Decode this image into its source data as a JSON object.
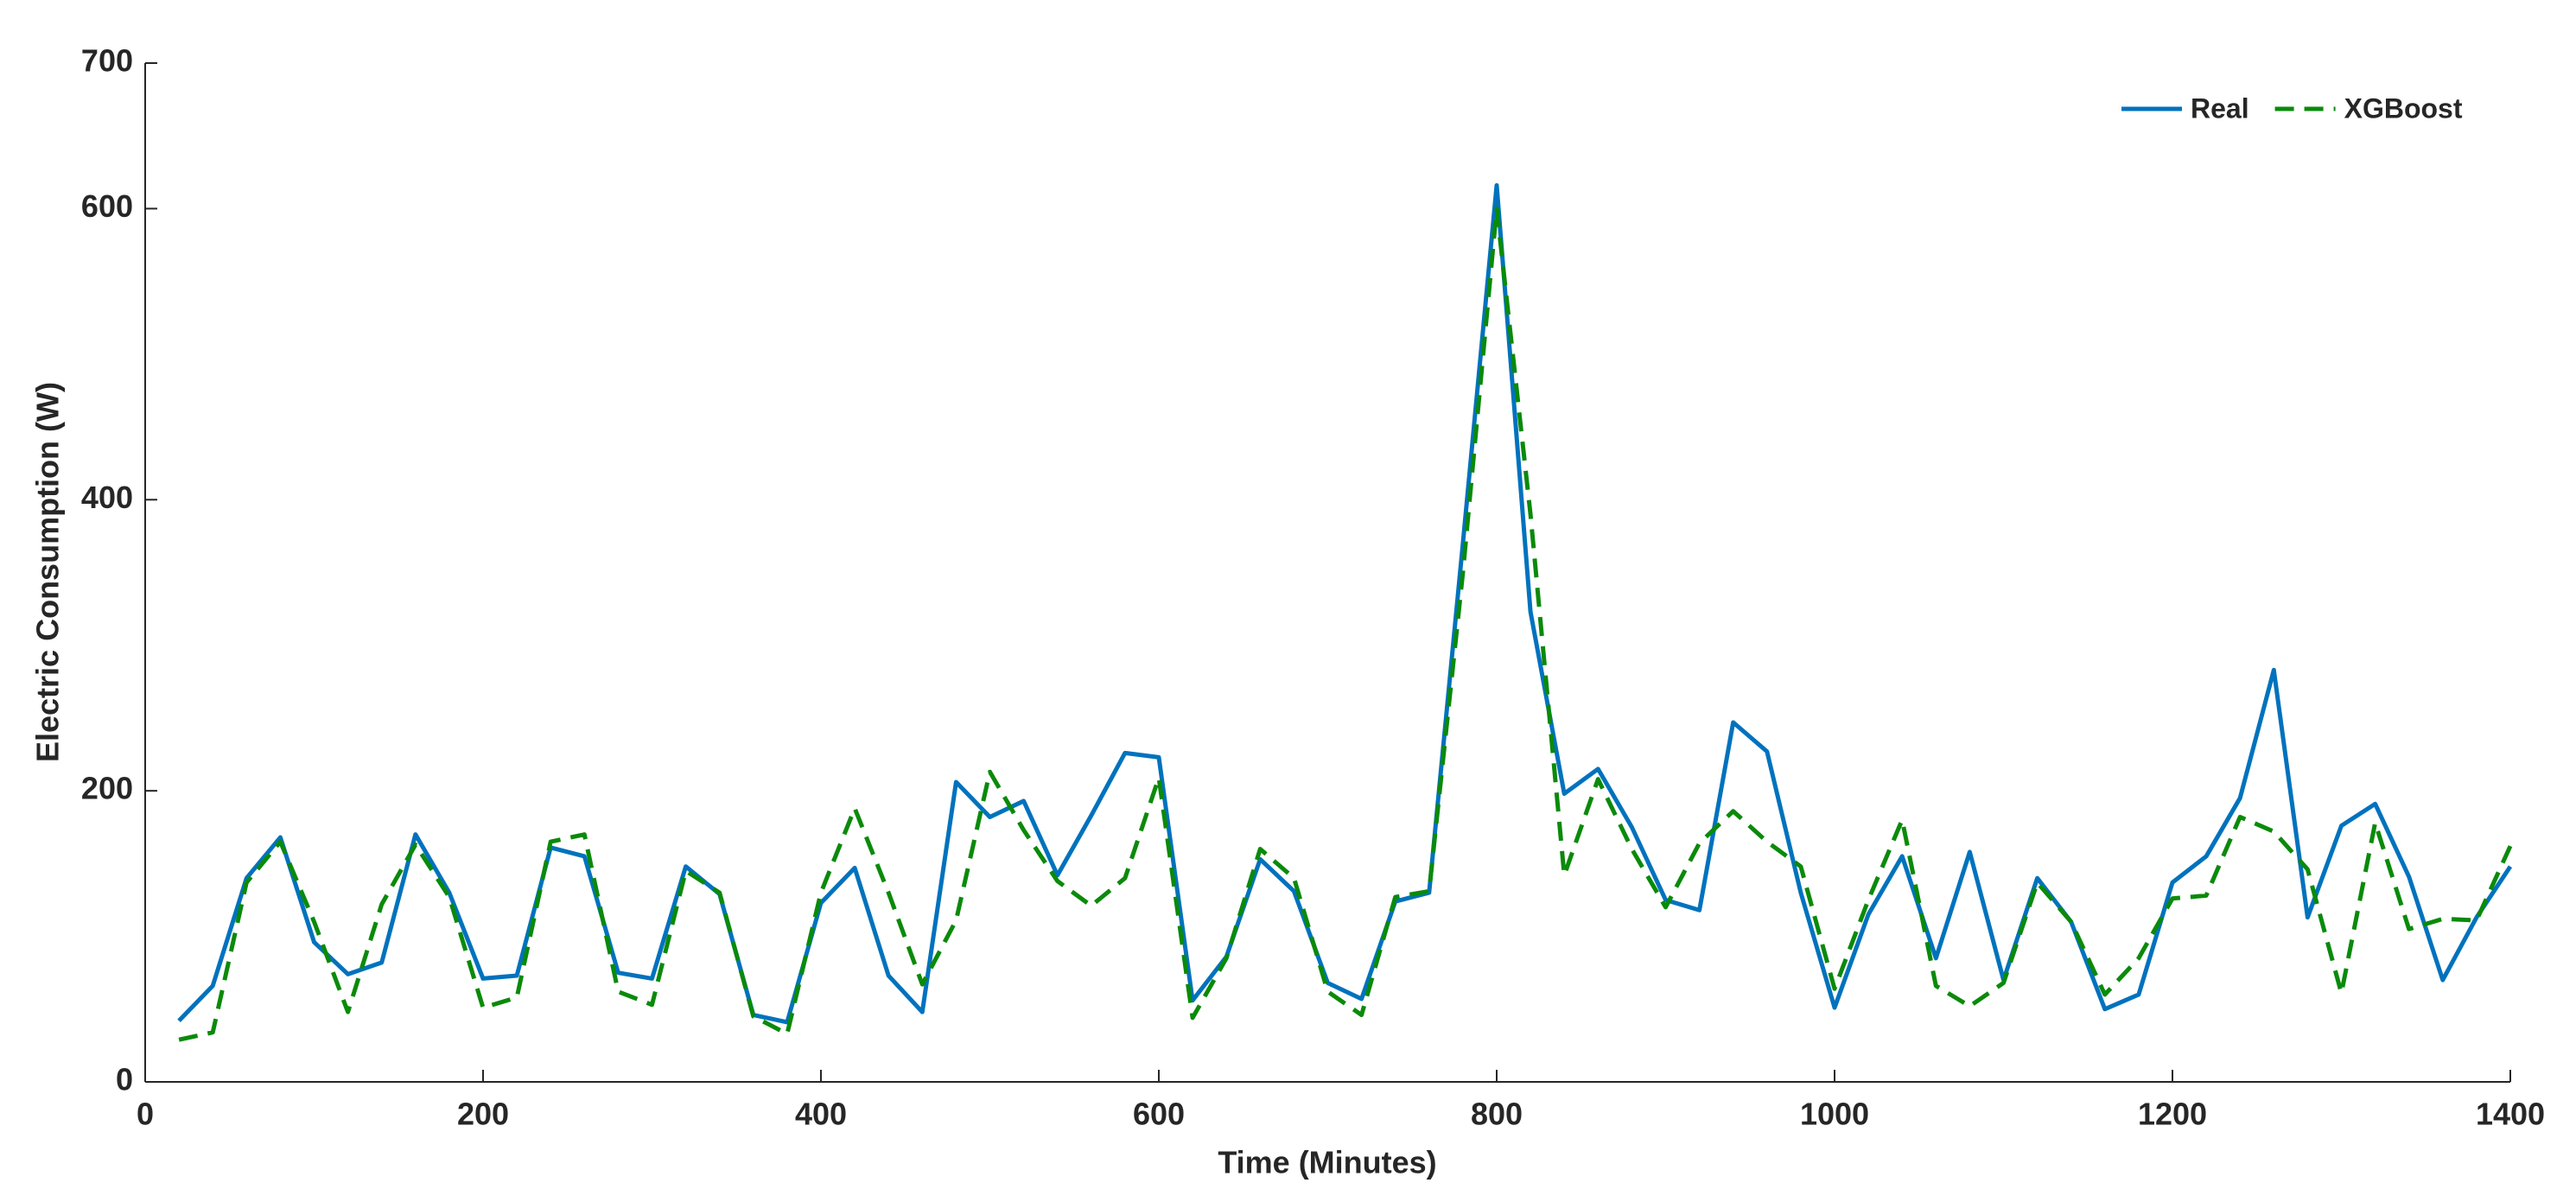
{
  "chart_data": {
    "type": "line",
    "xlabel": "Time (Minutes)",
    "ylabel": "Electric Consumption (W)",
    "x": [
      20,
      40,
      60,
      80,
      100,
      120,
      140,
      160,
      180,
      200,
      220,
      240,
      260,
      280,
      300,
      320,
      340,
      360,
      380,
      400,
      420,
      440,
      460,
      480,
      500,
      520,
      540,
      560,
      580,
      600,
      620,
      640,
      660,
      680,
      700,
      720,
      740,
      760,
      780,
      800,
      820,
      840,
      860,
      880,
      900,
      920,
      940,
      960,
      980,
      1000,
      1020,
      1040,
      1060,
      1080,
      1100,
      1120,
      1140,
      1160,
      1180,
      1200,
      1220,
      1240,
      1260,
      1280,
      1300,
      1320,
      1340,
      1360,
      1380,
      1400
    ],
    "series": [
      {
        "name": "Real",
        "color": "#0072bd",
        "dash": false,
        "values": [
          42,
          66,
          140,
          168,
          96,
          74,
          82,
          170,
          130,
          71,
          73,
          161,
          155,
          75,
          71,
          148,
          129,
          46,
          41,
          123,
          147,
          73,
          48,
          206,
          182,
          193,
          142,
          183,
          226,
          223,
          56,
          86,
          153,
          131,
          68,
          57,
          124,
          130,
          370,
          616,
          323,
          198,
          215,
          175,
          125,
          118,
          247,
          227,
          130,
          51,
          115,
          155,
          85,
          158,
          70,
          140,
          110,
          50,
          60,
          137,
          155,
          195,
          283,
          113,
          176,
          191,
          141,
          70,
          113,
          148
        ]
      },
      {
        "name": "XGBoost",
        "color": "#0a8a0a",
        "dash": true,
        "values": [
          29,
          34,
          137,
          165,
          110,
          48,
          122,
          163,
          127,
          51,
          58,
          165,
          170,
          62,
          53,
          145,
          130,
          45,
          33,
          130,
          188,
          130,
          67,
          111,
          213,
          173,
          138,
          121,
          140,
          209,
          44,
          85,
          160,
          140,
          62,
          46,
          127,
          131,
          350,
          600,
          390,
          142,
          208,
          160,
          120,
          164,
          186,
          165,
          148,
          64,
          125,
          180,
          66,
          52,
          68,
          137,
          110,
          60,
          85,
          126,
          128,
          182,
          172,
          146,
          61,
          178,
          105,
          112,
          111,
          162
        ]
      }
    ],
    "xlim": [
      0,
      1400
    ],
    "xticks": [
      0,
      200,
      400,
      600,
      800,
      1000,
      1200,
      1400
    ],
    "ylim": [
      0,
      700
    ],
    "yticks": [
      0,
      200,
      400,
      600,
      700
    ],
    "legend": "upper-right"
  }
}
